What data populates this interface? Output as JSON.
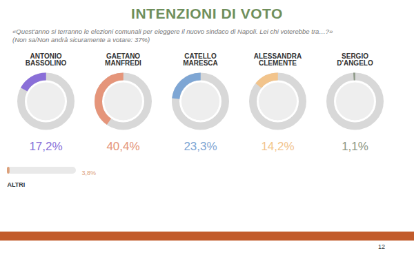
{
  "chart_data": {
    "type": "donut",
    "title": "INTENZIONI DI VOTO",
    "subtitle": "«Quest'anno si terranno le elezioni comunali per eleggere il nuovo sindaco di Napoli. Lei chi voterebbe tra…?»",
    "note": "(Non sa/Non andrà sicuramente a votare: 37%)",
    "categories": [
      "ANTONIO BASSOLINO",
      "GAETANO MANFREDI",
      "CATELLO MARESCA",
      "ALESSANDRA CLEMENTE",
      "SERGIO D'ANGELO"
    ],
    "values": [
      17.2,
      40.4,
      23.3,
      14.2,
      1.1
    ],
    "value_labels": [
      "17,2%",
      "40,4%",
      "23,3%",
      "14,2%",
      "1,1%"
    ],
    "colors": [
      "#8a6fd8",
      "#e5957a",
      "#7ea6d4",
      "#f2c48c",
      "#8c9886"
    ],
    "ylim": [
      0,
      100
    ],
    "data_labels": true,
    "others": {
      "label": "ALTRI",
      "value": 3.8,
      "value_label": "3,8%",
      "color": "#dca07a",
      "xlim": [
        0,
        100
      ]
    },
    "page_number": "12"
  }
}
